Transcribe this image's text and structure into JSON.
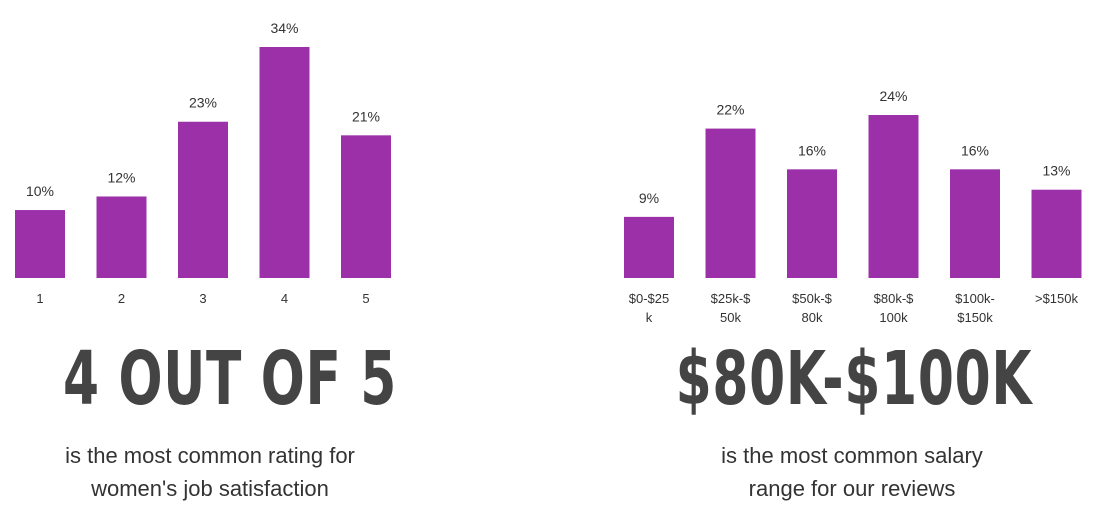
{
  "colors": {
    "bar": "#9b30a8",
    "headline": "#444444",
    "text": "#333333"
  },
  "chart_data": [
    {
      "type": "bar",
      "categories": [
        "1",
        "2",
        "3",
        "4",
        "5"
      ],
      "values": [
        10,
        12,
        23,
        34,
        21
      ],
      "value_labels": [
        "10%",
        "12%",
        "23%",
        "34%",
        "21%"
      ],
      "ylim": [
        0,
        34
      ],
      "grid": false
    },
    {
      "type": "bar",
      "categories": [
        [
          "$0-$25",
          "k"
        ],
        [
          "$25k-$",
          "50k"
        ],
        [
          "$50k-$",
          "80k"
        ],
        [
          "$80k-$",
          "100k"
        ],
        [
          "$100k-",
          "$150k"
        ],
        [
          ">$150k"
        ]
      ],
      "values": [
        9,
        22,
        16,
        24,
        16,
        13
      ],
      "value_labels": [
        "9%",
        "22%",
        "16%",
        "24%",
        "16%",
        "13%"
      ],
      "ylim": [
        0,
        24
      ],
      "grid": false
    }
  ],
  "left": {
    "headline": "4 OUT OF 5",
    "caption": [
      "is the most common rating for",
      "women's job satisfaction"
    ]
  },
  "right": {
    "headline": "$80K-$100K",
    "caption": [
      "is the most common salary",
      "range for our reviews"
    ]
  }
}
